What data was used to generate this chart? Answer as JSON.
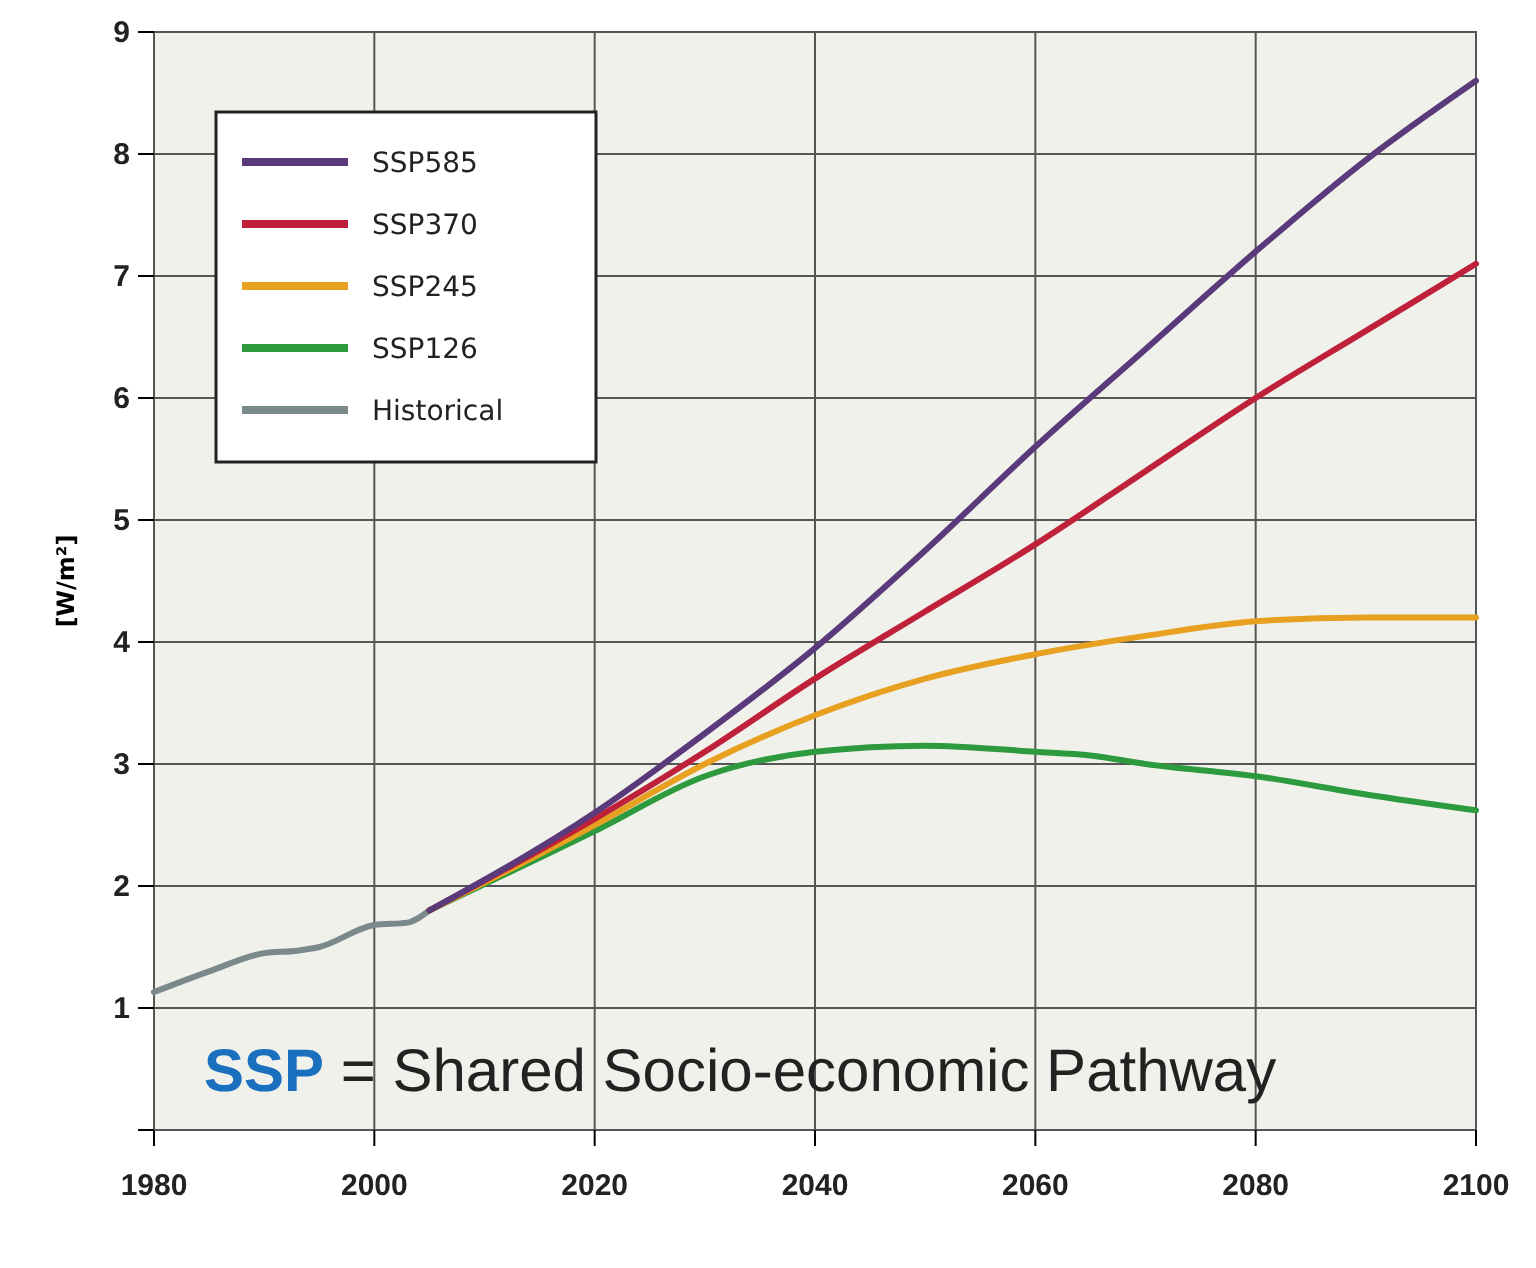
{
  "chart_data": {
    "type": "line",
    "ylabel": "[W/m²]",
    "annotations": [
      "SSP = Shared Socio-economic Pathway"
    ],
    "xlim": [
      1980,
      2100
    ],
    "xticks": [
      1980,
      2000,
      2020,
      2040,
      2060,
      2080,
      2100
    ],
    "ylim": [
      0,
      9
    ],
    "yticks": [
      {
        "value": 0,
        "label": null
      },
      1,
      2,
      3,
      4,
      5,
      6,
      7,
      8,
      9
    ],
    "grid": true,
    "legend": "top left",
    "line_style": "solid",
    "marker": "none",
    "series": [
      {
        "name": "SSP585",
        "color": "#5a3a7a",
        "x": [
          2005,
          2020,
          2030,
          2040,
          2050,
          2060,
          2070,
          2080,
          2090,
          2100
        ],
        "values": [
          1.8,
          2.6,
          3.25,
          3.95,
          4.75,
          5.6,
          6.4,
          7.2,
          7.95,
          8.6
        ]
      },
      {
        "name": "SSP370",
        "color": "#c0213a",
        "x": [
          2005,
          2020,
          2030,
          2040,
          2050,
          2060,
          2070,
          2080,
          2090,
          2100
        ],
        "values": [
          1.8,
          2.55,
          3.1,
          3.7,
          4.25,
          4.8,
          5.4,
          6.0,
          6.55,
          7.1
        ]
      },
      {
        "name": "SSP245",
        "color": "#e8a020",
        "x": [
          2005,
          2020,
          2030,
          2040,
          2050,
          2060,
          2070,
          2080,
          2090,
          2100
        ],
        "values": [
          1.8,
          2.5,
          3.0,
          3.4,
          3.7,
          3.9,
          4.05,
          4.17,
          4.2,
          4.2
        ]
      },
      {
        "name": "SSP126",
        "color": "#2e9a3e",
        "x": [
          2005,
          2020,
          2030,
          2040,
          2050,
          2060,
          2065,
          2070,
          2080,
          2090,
          2100
        ],
        "values": [
          1.8,
          2.45,
          2.9,
          3.1,
          3.15,
          3.1,
          3.07,
          3.0,
          2.9,
          2.75,
          2.62
        ]
      },
      {
        "name": "Historical",
        "color": "#7a8a8a",
        "x": [
          1980,
          1985,
          1990,
          1993,
          1995,
          2000,
          2003,
          2005
        ],
        "values": [
          1.13,
          1.3,
          1.45,
          1.47,
          1.5,
          1.68,
          1.7,
          1.8
        ]
      }
    ]
  }
}
